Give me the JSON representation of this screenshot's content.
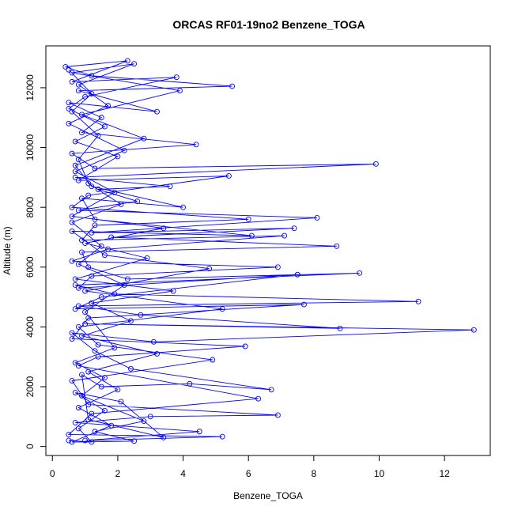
{
  "chart_data": {
    "type": "line",
    "title": "ORCAS RF01-19no2 Benzene_TOGA",
    "xlabel": "Benzene_TOGA",
    "ylabel": "Altitude (m)",
    "xlim": [
      -0.2,
      13.4
    ],
    "ylim": [
      -300,
      13400
    ],
    "xticks": [
      0,
      2,
      4,
      6,
      8,
      10,
      12
    ],
    "yticks": [
      0,
      2000,
      4000,
      6000,
      8000,
      10000,
      12000
    ],
    "grid": false,
    "legend": "none",
    "marker": "open-circle",
    "series": [
      {
        "color": "#0000ff",
        "points": [
          [
            0.5,
            200
          ],
          [
            1.2,
            150
          ],
          [
            0.8,
            600
          ],
          [
            1.6,
            1200
          ],
          [
            0.7,
            1800
          ],
          [
            2.1,
            1500
          ],
          [
            3.4,
            300
          ],
          [
            1.1,
            900
          ],
          [
            0.9,
            2400
          ],
          [
            1.5,
            2000
          ],
          [
            4.2,
            2100
          ],
          [
            6.7,
            1900
          ],
          [
            2.4,
            2600
          ],
          [
            1.3,
            3200
          ],
          [
            0.6,
            3800
          ],
          [
            3.1,
            3500
          ],
          [
            12.9,
            3900
          ],
          [
            1.0,
            4100
          ],
          [
            8.8,
            3950
          ],
          [
            2.7,
            4400
          ],
          [
            0.8,
            4700
          ],
          [
            11.2,
            4850
          ],
          [
            1.9,
            5100
          ],
          [
            0.7,
            5400
          ],
          [
            9.4,
            5800
          ],
          [
            2.3,
            5600
          ],
          [
            1.1,
            6000
          ],
          [
            0.9,
            6500
          ],
          [
            8.7,
            6700
          ],
          [
            1.8,
            7000
          ],
          [
            7.4,
            7300
          ],
          [
            1.2,
            7150
          ],
          [
            8.1,
            7650
          ],
          [
            0.8,
            7900
          ],
          [
            2.6,
            8200
          ],
          [
            1.4,
            8600
          ],
          [
            3.6,
            8700
          ],
          [
            0.7,
            9000
          ],
          [
            9.9,
            9450
          ],
          [
            1.3,
            9300
          ],
          [
            0.6,
            9800
          ],
          [
            4.4,
            10100
          ],
          [
            0.9,
            10500
          ],
          [
            1.5,
            11000
          ],
          [
            0.5,
            11500
          ],
          [
            3.2,
            11200
          ],
          [
            0.8,
            11900
          ],
          [
            5.5,
            12050
          ],
          [
            1.2,
            12400
          ],
          [
            0.4,
            12700
          ],
          [
            2.3,
            12900
          ],
          [
            0.6,
            12200
          ],
          [
            3.8,
            12350
          ],
          [
            1.0,
            11700
          ],
          [
            0.5,
            11300
          ],
          [
            1.6,
            10700
          ],
          [
            0.7,
            10200
          ],
          [
            2.0,
            9700
          ],
          [
            0.8,
            8900
          ],
          [
            5.4,
            9050
          ],
          [
            1.1,
            8400
          ],
          [
            0.6,
            8000
          ],
          [
            6.0,
            7600
          ],
          [
            1.3,
            7400
          ],
          [
            0.9,
            6900
          ],
          [
            7.1,
            7050
          ],
          [
            1.7,
            6600
          ],
          [
            0.6,
            6200
          ],
          [
            6.9,
            6000
          ],
          [
            1.2,
            5700
          ],
          [
            0.8,
            5300
          ],
          [
            7.5,
            5750
          ],
          [
            1.5,
            5000
          ],
          [
            0.7,
            4600
          ],
          [
            7.7,
            4750
          ],
          [
            1.1,
            4300
          ],
          [
            0.6,
            3600
          ],
          [
            5.9,
            3350
          ],
          [
            1.4,
            3000
          ],
          [
            0.8,
            2700
          ],
          [
            6.3,
            1600
          ],
          [
            1.2,
            1100
          ],
          [
            0.5,
            400
          ],
          [
            5.2,
            330
          ],
          [
            1.0,
            200
          ],
          [
            4.5,
            500
          ],
          [
            0.7,
            800
          ],
          [
            3.0,
            1000
          ],
          [
            6.9,
            1050
          ],
          [
            1.1,
            1400
          ],
          [
            0.6,
            2200
          ],
          [
            4.9,
            2900
          ],
          [
            1.4,
            3400
          ],
          [
            0.8,
            4000
          ],
          [
            5.2,
            4600
          ],
          [
            1.0,
            5200
          ],
          [
            4.8,
            5950
          ],
          [
            1.6,
            6400
          ],
          [
            0.6,
            7200
          ],
          [
            6.1,
            7050
          ],
          [
            1.3,
            7600
          ],
          [
            0.9,
            8300
          ],
          [
            4.0,
            8000
          ],
          [
            1.2,
            8700
          ],
          [
            0.7,
            9400
          ],
          [
            2.8,
            10300
          ],
          [
            0.9,
            11100
          ],
          [
            3.9,
            11900
          ],
          [
            0.6,
            12500
          ],
          [
            2.5,
            12800
          ],
          [
            0.8,
            12100
          ],
          [
            1.7,
            11400
          ],
          [
            0.5,
            10800
          ],
          [
            2.2,
            9900
          ],
          [
            0.7,
            9200
          ],
          [
            1.9,
            8500
          ],
          [
            0.6,
            7700
          ],
          [
            3.4,
            7300
          ],
          [
            1.0,
            6800
          ],
          [
            2.9,
            6300
          ],
          [
            0.7,
            5600
          ],
          [
            3.7,
            5200
          ],
          [
            1.2,
            4800
          ],
          [
            2.4,
            4200
          ],
          [
            0.9,
            3700
          ],
          [
            3.2,
            3100
          ],
          [
            1.1,
            2500
          ],
          [
            2.0,
            1900
          ],
          [
            0.8,
            1300
          ],
          [
            1.8,
            700
          ],
          [
            0.6,
            150
          ],
          [
            2.5,
            180
          ],
          [
            1.3,
            500
          ],
          [
            2.8,
            850
          ],
          [
            0.9,
            1700
          ],
          [
            1.6,
            2300
          ],
          [
            0.7,
            2800
          ],
          [
            1.9,
            3300
          ],
          [
            1.0,
            4500
          ],
          [
            2.2,
            5400
          ],
          [
            0.8,
            6100
          ],
          [
            1.5,
            6700
          ],
          [
            0.6,
            7500
          ],
          [
            2.1,
            8100
          ],
          [
            1.1,
            8800
          ],
          [
            0.8,
            9600
          ],
          [
            1.4,
            10400
          ],
          [
            0.6,
            11200
          ],
          [
            1.2,
            11800
          ],
          [
            0.5,
            12600
          ]
        ]
      }
    ]
  }
}
